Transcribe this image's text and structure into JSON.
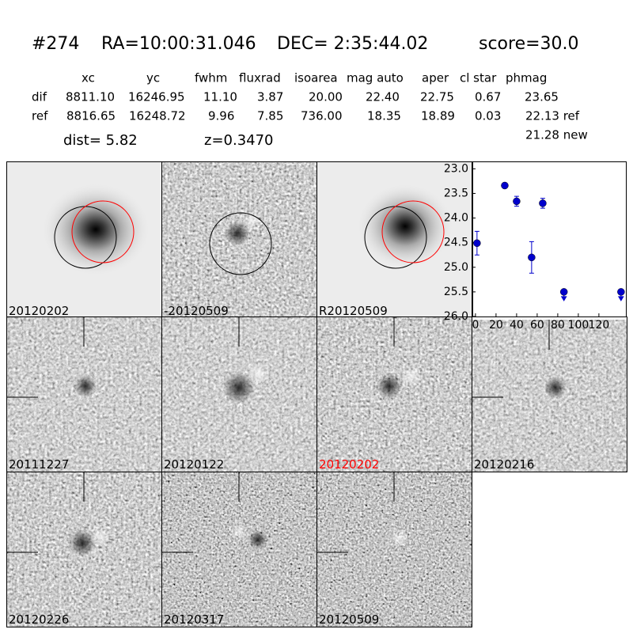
{
  "header": {
    "id": "#274",
    "ra": "RA=10:00:31.046",
    "dec": "DEC= 2:35:44.02",
    "score": "score=30.0"
  },
  "table": {
    "columns": [
      "xc",
      "yc",
      "fwhm",
      "fluxrad",
      "isoarea",
      "mag auto",
      "aper",
      "cl star",
      "phmag"
    ],
    "rows": [
      [
        "dif",
        "8811.10",
        "16246.95",
        "11.10",
        "3.87",
        "20.00",
        "22.40",
        "22.75",
        "0.67",
        "23.65"
      ],
      [
        "ref",
        "8816.65",
        "16248.72",
        "9.96",
        "7.85",
        "736.00",
        "18.35",
        "18.89",
        "0.03",
        "22.13 ref"
      ]
    ],
    "extra": "21.28 new"
  },
  "dist": "dist=  5.82",
  "z": "z=0.3470",
  "stamps": [
    "20120202",
    "-20120509",
    "R20120509",
    "20111227",
    "20120122",
    "20120202",
    "20120216",
    "20120226",
    "20120317",
    "20120509"
  ],
  "chart_data": {
    "type": "scatter",
    "xlim": [
      -3,
      147
    ],
    "ylim": [
      26,
      22.85
    ],
    "xticks": [
      0,
      20,
      40,
      60,
      80,
      100,
      120
    ],
    "yticks": [
      {
        "value": 23,
        "label": "23.0"
      },
      {
        "value": 23.5,
        "label": "23.5"
      },
      {
        "value": 24,
        "label": "24.0"
      },
      {
        "value": 24.5,
        "label": "24.5"
      },
      {
        "value": 25,
        "label": "25.0"
      },
      {
        "value": 25.5,
        "label": "25.5"
      },
      {
        "value": 26,
        "label": "26.0"
      }
    ],
    "color": "#0000cc",
    "series": [
      {
        "x": [
          1.5,
          28.5,
          40,
          54.6,
          65.4
        ],
        "values": [
          24.51,
          23.34,
          23.66,
          24.8,
          23.7
        ],
        "errors": [
          0.24,
          0.04,
          0.1,
          0.32,
          0.1
        ]
      },
      {
        "x": [
          86,
          141.5
        ],
        "values": [
          25.5,
          25.5
        ],
        "upper_limit": true
      }
    ]
  }
}
